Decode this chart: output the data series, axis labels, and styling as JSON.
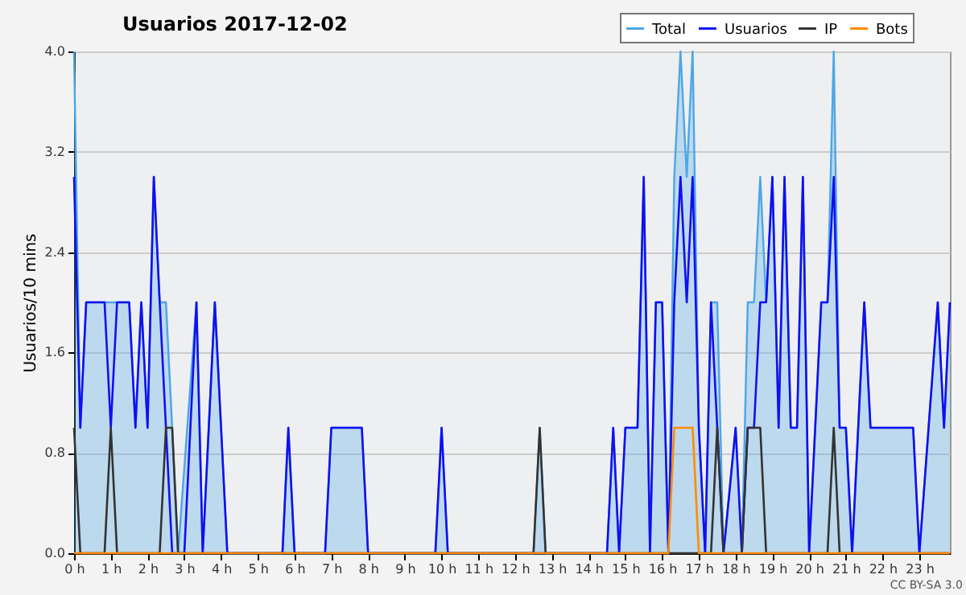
{
  "chart_data": {
    "type": "line",
    "title": "Usuarios  2017-12-02",
    "ylabel": "Usuarios/10 mins",
    "annotations": [
      "CC BY-SA 3.0"
    ],
    "xlim": [
      0,
      23.83
    ],
    "ylim": [
      0,
      4
    ],
    "xticks": [
      {
        "value": 0,
        "label": "0 h"
      },
      {
        "value": 1,
        "label": "1 h"
      },
      {
        "value": 2,
        "label": "2 h"
      },
      {
        "value": 3,
        "label": "3 h"
      },
      {
        "value": 4,
        "label": "4 h"
      },
      {
        "value": 5,
        "label": "5 h"
      },
      {
        "value": 6,
        "label": "6 h"
      },
      {
        "value": 7,
        "label": "7 h"
      },
      {
        "value": 8,
        "label": "8 h"
      },
      {
        "value": 9,
        "label": "9 h"
      },
      {
        "value": 10,
        "label": "10 h"
      },
      {
        "value": 11,
        "label": "11 h"
      },
      {
        "value": 12,
        "label": "12 h"
      },
      {
        "value": 13,
        "label": "13 h"
      },
      {
        "value": 14,
        "label": "14 h"
      },
      {
        "value": 15,
        "label": "15 h"
      },
      {
        "value": 16,
        "label": "16 h"
      },
      {
        "value": 17,
        "label": "17 h"
      },
      {
        "value": 18,
        "label": "18 h"
      },
      {
        "value": 19,
        "label": "19 h"
      },
      {
        "value": 20,
        "label": "20 h"
      },
      {
        "value": 21,
        "label": "21 h"
      },
      {
        "value": 22,
        "label": "22 h"
      },
      {
        "value": 23,
        "label": "23 h"
      }
    ],
    "yticks": [
      {
        "value": 0,
        "label": "0.0"
      },
      {
        "value": 0.8,
        "label": "0.8"
      },
      {
        "value": 1.6,
        "label": "1.6"
      },
      {
        "value": 2.4,
        "label": "2.4"
      },
      {
        "value": 3.2,
        "label": "3.2"
      },
      {
        "value": 4,
        "label": "4.0"
      }
    ],
    "grid": "y",
    "legend": "top right",
    "line_style": "solid",
    "series": [
      {
        "name": "Total",
        "type": "area",
        "color": "#4da6e6",
        "x": [
          0,
          0.17,
          0.33,
          0.83,
          1,
          1.17,
          1.5,
          1.67,
          1.83,
          2,
          2.17,
          2.33,
          2.5,
          2.67,
          2.83,
          3.33,
          3.5,
          3.83,
          4.17,
          5.67,
          5.83,
          6,
          6.83,
          7,
          7.83,
          8,
          9.83,
          10,
          10.17,
          12.5,
          12.67,
          12.83,
          14.5,
          14.67,
          14.83,
          15,
          15.33,
          15.5,
          15.67,
          15.83,
          16,
          16.17,
          16.33,
          16.5,
          16.67,
          16.83,
          17,
          17.17,
          17.33,
          17.5,
          17.67,
          18,
          18.17,
          18.33,
          18.5,
          18.67,
          18.83,
          19,
          19.17,
          19.33,
          19.5,
          19.67,
          19.83,
          20,
          20.33,
          20.5,
          20.67,
          20.83,
          21,
          21.17,
          21.5,
          21.67,
          22.83,
          23,
          23.5,
          23.67,
          23.83
        ],
        "values": [
          4,
          1,
          2,
          2,
          2,
          2,
          2,
          1,
          2,
          1,
          3,
          2,
          2,
          1,
          0,
          2,
          0,
          2,
          0,
          0,
          1,
          0,
          0,
          1,
          1,
          0,
          0,
          1,
          0,
          0,
          1,
          0,
          0,
          1,
          0,
          1,
          1,
          3,
          0,
          2,
          2,
          0,
          3,
          4,
          3,
          4,
          1,
          0,
          2,
          2,
          0,
          1,
          0,
          2,
          2,
          3,
          2,
          3,
          1,
          3,
          1,
          1,
          3,
          0,
          2,
          2,
          4,
          1,
          1,
          0,
          2,
          1,
          1,
          0,
          2,
          1,
          2
        ]
      },
      {
        "name": "Usuarios",
        "type": "line",
        "color": "#1010f0",
        "x": [
          0,
          0.17,
          0.33,
          0.83,
          1,
          1.17,
          1.5,
          1.67,
          1.83,
          2,
          2.17,
          2.33,
          2.5,
          2.67,
          3,
          3.33,
          3.5,
          3.83,
          4.17,
          5.67,
          5.83,
          6,
          6.83,
          7,
          7.83,
          8,
          9.83,
          10,
          10.17,
          14.5,
          14.67,
          14.83,
          15,
          15.33,
          15.5,
          15.67,
          15.83,
          16,
          16.17,
          16.33,
          16.5,
          16.67,
          16.83,
          17,
          17.17,
          17.33,
          17.5,
          17.67,
          18,
          18.17,
          18.33,
          18.5,
          18.67,
          18.83,
          19,
          19.17,
          19.33,
          19.5,
          19.67,
          19.83,
          20,
          20.33,
          20.5,
          20.67,
          20.83,
          21,
          21.17,
          21.5,
          21.67,
          22.83,
          23,
          23.5,
          23.67,
          23.83
        ],
        "values": [
          3,
          1,
          2,
          2,
          1,
          2,
          2,
          1,
          2,
          1,
          3,
          2,
          1,
          0,
          0,
          2,
          0,
          2,
          0,
          0,
          1,
          0,
          0,
          1,
          1,
          0,
          0,
          1,
          0,
          0,
          1,
          0,
          1,
          1,
          3,
          0,
          2,
          2,
          0,
          2,
          3,
          2,
          3,
          1,
          0,
          2,
          1,
          0,
          1,
          0,
          1,
          1,
          2,
          2,
          3,
          1,
          3,
          1,
          1,
          3,
          0,
          2,
          2,
          3,
          1,
          1,
          0,
          2,
          1,
          1,
          0,
          2,
          1,
          2
        ]
      },
      {
        "name": "IP",
        "type": "line",
        "color": "#333333",
        "x": [
          0,
          0.17,
          0.83,
          1,
          1.17,
          2.33,
          2.5,
          2.67,
          2.83,
          12.5,
          12.67,
          12.83,
          17.33,
          17.5,
          17.67,
          18.17,
          18.33,
          18.67,
          18.83,
          20.5,
          20.67,
          20.83,
          23.83
        ],
        "values": [
          1,
          0,
          0,
          1,
          0,
          0,
          1,
          1,
          0,
          0,
          1,
          0,
          0,
          1,
          0,
          0,
          1,
          1,
          0,
          0,
          1,
          0,
          0
        ]
      },
      {
        "name": "Bots",
        "type": "line",
        "color": "#ff8c00",
        "x": [
          0,
          16.17,
          16.33,
          16.83,
          17,
          23.83
        ],
        "values": [
          0,
          0,
          1,
          1,
          0,
          0
        ]
      }
    ]
  }
}
